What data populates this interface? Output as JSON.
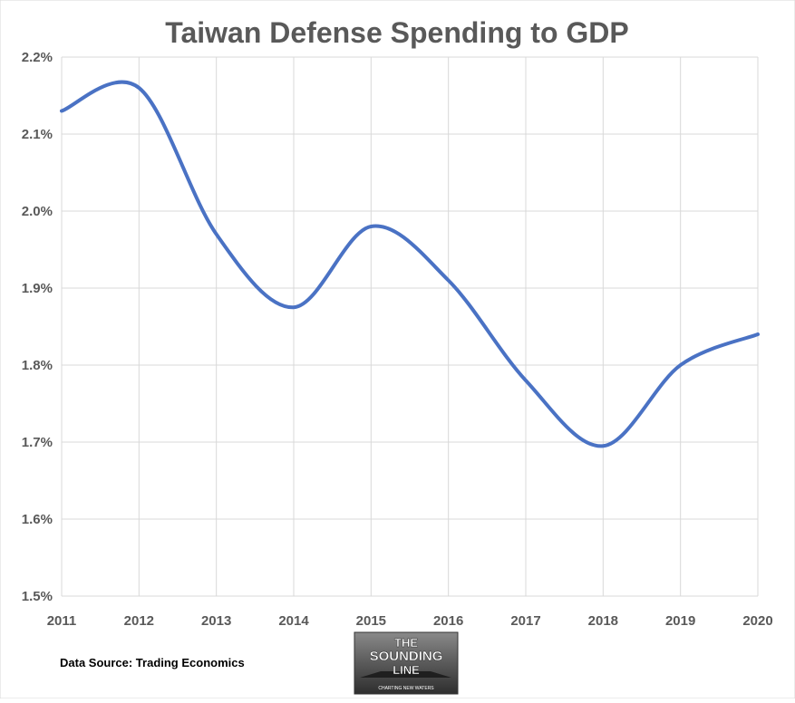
{
  "chart_data": {
    "type": "line",
    "title": "Taiwan Defense Spending to GDP",
    "xlabel": "",
    "ylabel": "",
    "x": [
      "2011",
      "2012",
      "2013",
      "2014",
      "2015",
      "2016",
      "2017",
      "2018",
      "2019",
      "2020"
    ],
    "series": [
      {
        "values": [
          2.13,
          2.16,
          1.97,
          1.875,
          1.98,
          1.91,
          1.78,
          1.695,
          1.8,
          1.84
        ]
      }
    ],
    "ylim": [
      1.5,
      2.2
    ],
    "yticks": [
      1.5,
      1.6,
      1.7,
      1.8,
      1.9,
      2.0,
      2.1,
      2.2
    ],
    "ytick_labels": [
      "1.5%",
      "1.6%",
      "1.7%",
      "1.8%",
      "1.9%",
      "2.0%",
      "2.1%",
      "2.2%"
    ],
    "grid": true,
    "line_color": "#4a72c4"
  },
  "footer": {
    "source_text": "Data Source: Trading Economics",
    "logo_line1": "THE",
    "logo_line2": "SOUNDING",
    "logo_line3": "LINE",
    "logo_tagline": "CHARTING NEW WATERS"
  }
}
